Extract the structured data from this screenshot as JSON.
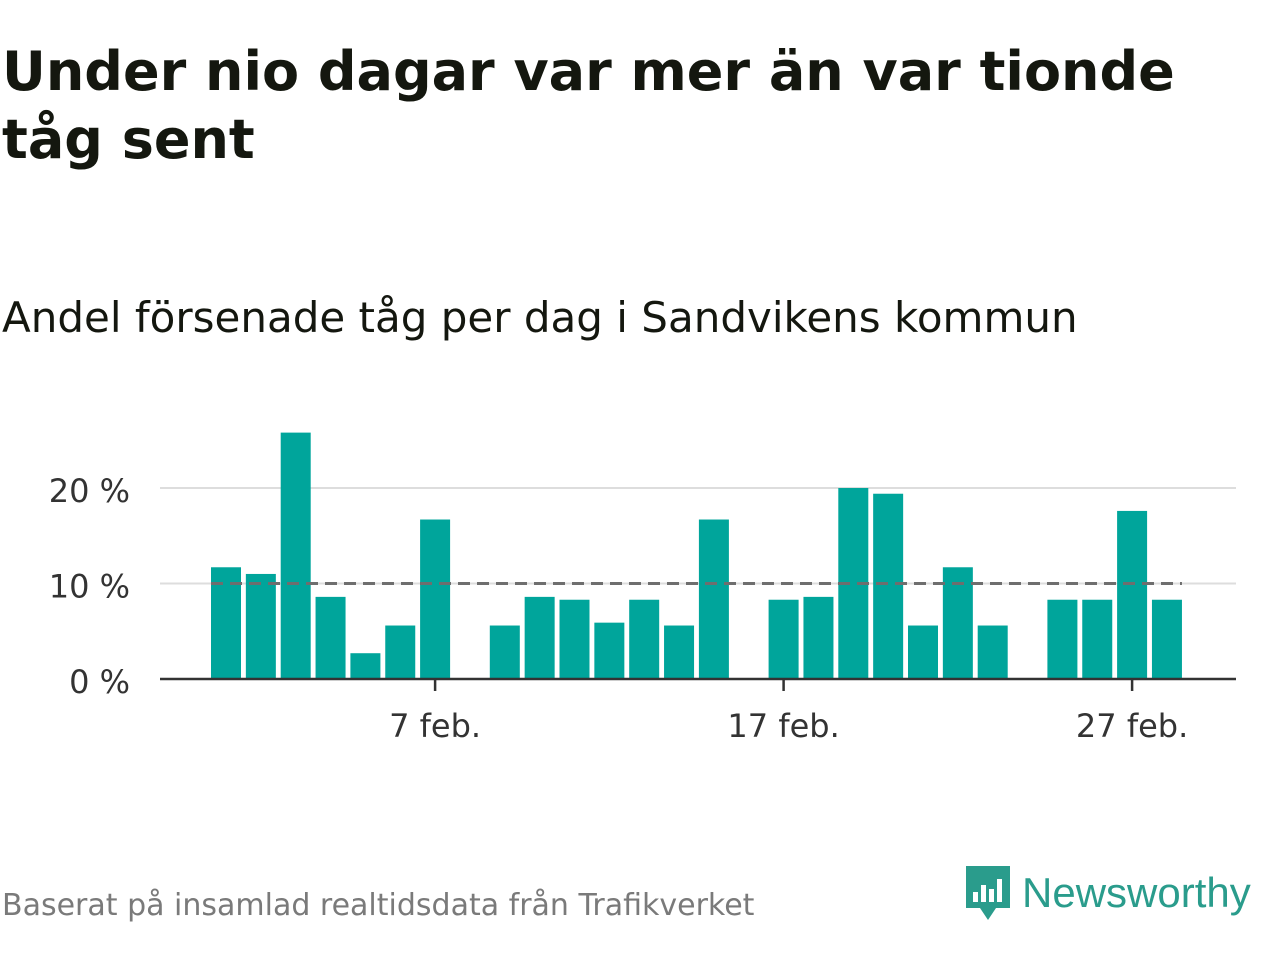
{
  "title": "Under nio dagar var mer än var tionde tåg sent",
  "subtitle": "Andel försenade tåg per dag i Sandvikens kommun",
  "source": "Baserat på insamlad realtidsdata från Trafikverket",
  "brand": "Newsworthy",
  "colors": {
    "bar": "#00a59b",
    "reference": "#6e6e6e",
    "grid": "#dddddd",
    "axis": "#333333",
    "text": "#14170f"
  },
  "chart_data": {
    "type": "bar",
    "x": [
      "2025-02-01",
      "2025-02-02",
      "2025-02-03",
      "2025-02-04",
      "2025-02-05",
      "2025-02-06",
      "2025-02-07",
      "2025-02-08",
      "2025-02-09",
      "2025-02-10",
      "2025-02-11",
      "2025-02-12",
      "2025-02-13",
      "2025-02-14",
      "2025-02-15",
      "2025-02-16",
      "2025-02-17",
      "2025-02-18",
      "2025-02-19",
      "2025-02-20",
      "2025-02-21",
      "2025-02-22",
      "2025-02-23",
      "2025-02-24",
      "2025-02-25",
      "2025-02-26",
      "2025-02-27",
      "2025-02-28"
    ],
    "values": [
      11.7,
      11.0,
      25.8,
      8.6,
      2.7,
      5.6,
      16.7,
      null,
      5.6,
      8.6,
      8.3,
      5.9,
      8.3,
      5.6,
      16.7,
      null,
      8.3,
      8.6,
      20.0,
      19.4,
      5.6,
      11.7,
      5.6,
      null,
      8.3,
      8.3,
      17.6,
      8.3
    ],
    "reference_line": 10,
    "ylim": [
      0,
      26
    ],
    "yticks": [
      0,
      10,
      20
    ],
    "ytick_labels": [
      "0 %",
      "10 %",
      "20 %"
    ],
    "xticks": [
      "2025-02-07",
      "2025-02-17",
      "2025-02-27"
    ],
    "xtick_labels": [
      "7 feb.",
      "17 feb.",
      "27 feb."
    ],
    "grid": true
  }
}
